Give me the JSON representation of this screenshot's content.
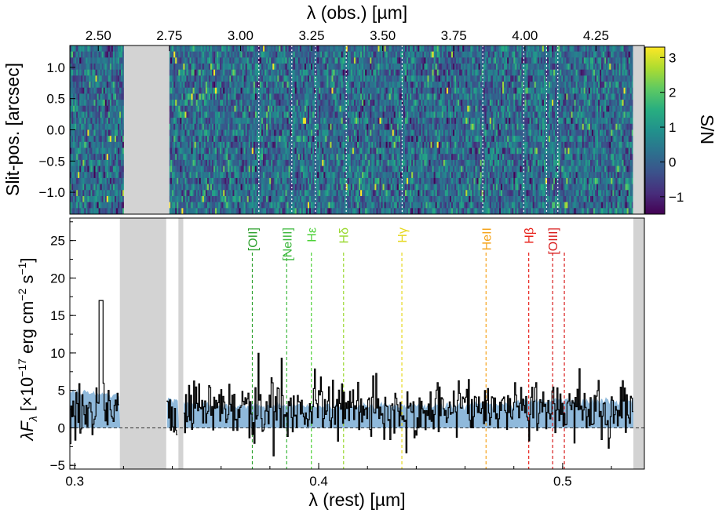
{
  "chart_data": [
    {
      "type": "heatmap",
      "panel": "2D spectrum",
      "title": "",
      "xlabel": "λ (obs.) [µm]",
      "ylabel": "Slit-pos. [arcsec]",
      "xlim": [
        2.4,
        4.42
      ],
      "ylim": [
        -1.35,
        1.35
      ],
      "x_ticks": [
        "2.50",
        "2.75",
        "3.00",
        "3.25",
        "3.50",
        "3.75",
        "4.00",
        "4.25"
      ],
      "x_tick_values": [
        2.5,
        2.75,
        3.0,
        3.25,
        3.5,
        3.75,
        4.0,
        4.25
      ],
      "y_ticks": [
        "−1.0",
        "−0.5",
        "0.0",
        "0.5",
        "1.0"
      ],
      "y_tick_values": [
        -1.0,
        -0.5,
        0.0,
        0.5,
        1.0
      ],
      "colorbar": {
        "label": "S/N",
        "range": [
          -1.5,
          3.3
        ],
        "ticks": [
          "−1",
          "0",
          "1",
          "2",
          "3"
        ],
        "tick_values": [
          -1,
          0,
          1,
          2,
          3
        ],
        "colormap": "viridis"
      },
      "masked_regions_obs_um": [
        [
          2.59,
          2.75
        ],
        [
          4.38,
          4.42
        ]
      ]
    },
    {
      "type": "line",
      "panel": "1D spectrum",
      "title": "",
      "xlabel": "λ (rest) [µm]",
      "ylabel": "λF",
      "ylabel_sub": "λ",
      "ylabel_rest": " [×10",
      "ylabel_exp1": "−17",
      "ylabel_mid": " erg cm",
      "ylabel_exp2": "−2",
      "ylabel_mid2": " s",
      "ylabel_exp3": "−1",
      "ylabel_end": "]",
      "xlim": [
        0.298,
        0.5335
      ],
      "ylim": [
        -5.5,
        28
      ],
      "x_ticks": [
        "0.3",
        "0.4",
        "0.5"
      ],
      "x_tick_values": [
        0.3,
        0.4,
        0.5
      ],
      "y_ticks": [
        "−5",
        "0",
        "5",
        "10",
        "15",
        "20",
        "25"
      ],
      "y_tick_values": [
        -5,
        0,
        5,
        10,
        15,
        20,
        25
      ],
      "zero_line": 0,
      "masked_regions_rest_um": [
        [
          0.3185,
          0.3375
        ],
        [
          0.3425,
          0.3445
        ],
        [
          0.529,
          0.5335
        ]
      ],
      "series": [
        {
          "role": "observed flux",
          "color": "#000000",
          "style": "steps",
          "x_range": [
            0.298,
            0.529
          ],
          "typical_range": [
            -5,
            10
          ],
          "peak_max": 17
        },
        {
          "role": "noise",
          "color": "#8fb9db",
          "style": "filled",
          "x_range": [
            0.298,
            0.529
          ],
          "approx_level": [
            5.0,
            3.0
          ]
        }
      ],
      "emission_lines": [
        {
          "label": "[OII]",
          "x": 0.3728,
          "color": "#2ca02c"
        },
        {
          "label": "[NeIII]",
          "x": 0.3869,
          "color": "#3cb83c"
        },
        {
          "label": "Hε",
          "x": 0.397,
          "color": "#4cd137"
        },
        {
          "label": "Hδ",
          "x": 0.4102,
          "color": "#9bd933"
        },
        {
          "label": "Hγ",
          "x": 0.4341,
          "color": "#e6d81f"
        },
        {
          "label": "HeII",
          "x": 0.4686,
          "color": "#f5a31a"
        },
        {
          "label": "Hβ",
          "x": 0.4861,
          "color": "#e8221b"
        },
        {
          "label": "[OIII]",
          "x": 0.4959,
          "color": "#d81c1c"
        },
        {
          "label": "",
          "x": 0.5007,
          "color": "#d81c1c"
        }
      ]
    }
  ]
}
